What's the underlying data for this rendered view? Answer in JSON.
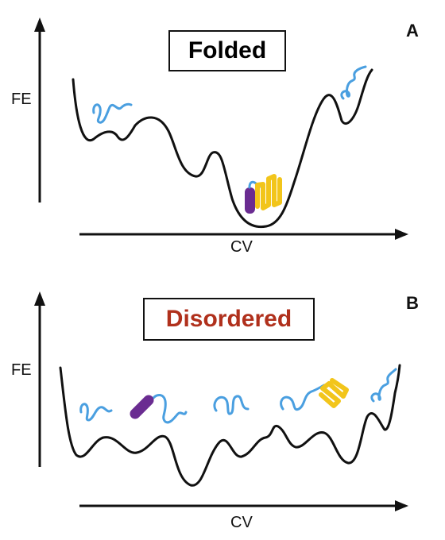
{
  "panels": [
    {
      "letter": "A",
      "title": "Folded",
      "title_color": "#111111",
      "y_axis_label": "FE",
      "x_axis_label": "CV"
    },
    {
      "letter": "B",
      "title": "Disordered",
      "title_color": "#b0301c",
      "y_axis_label": "FE",
      "x_axis_label": "CV"
    }
  ],
  "colors": {
    "curve": "#111111",
    "unfolded_chain": "#4a9fe0",
    "helix": "#6a2c91",
    "sheet": "#f2c51b"
  }
}
